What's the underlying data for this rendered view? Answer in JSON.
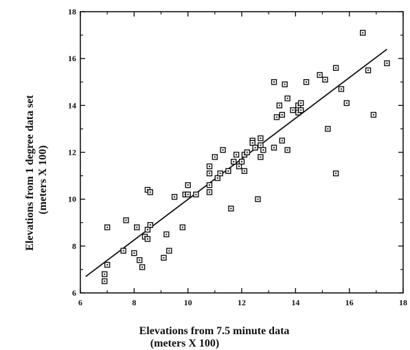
{
  "chart_data": {
    "type": "scatter",
    "title": "",
    "xlabel": [
      "Elevations from 7.5 minute data",
      "(meters X 100)"
    ],
    "ylabel": [
      "Elevations from 1 degree data set",
      "(meters X 100)"
    ],
    "xlim": [
      6,
      18
    ],
    "ylim": [
      6,
      18
    ],
    "xticks": [
      "6",
      "8",
      "10",
      "12",
      "14",
      "16",
      "18"
    ],
    "yticks": [
      "6",
      "8",
      "10",
      "12",
      "14",
      "16",
      "18"
    ],
    "grid": false,
    "legend": "none",
    "marker": "open-square",
    "points": [
      {
        "x": 6.9,
        "y": 6.5
      },
      {
        "x": 6.9,
        "y": 6.8
      },
      {
        "x": 7.0,
        "y": 7.2
      },
      {
        "x": 7.0,
        "y": 8.8
      },
      {
        "x": 7.6,
        "y": 7.8
      },
      {
        "x": 7.7,
        "y": 9.1
      },
      {
        "x": 8.0,
        "y": 7.7
      },
      {
        "x": 8.1,
        "y": 8.8
      },
      {
        "x": 8.2,
        "y": 7.4
      },
      {
        "x": 8.3,
        "y": 7.1
      },
      {
        "x": 8.4,
        "y": 8.4
      },
      {
        "x": 8.5,
        "y": 8.3
      },
      {
        "x": 8.5,
        "y": 8.7
      },
      {
        "x": 8.5,
        "y": 10.4
      },
      {
        "x": 8.6,
        "y": 8.9
      },
      {
        "x": 8.6,
        "y": 10.3
      },
      {
        "x": 9.1,
        "y": 7.5
      },
      {
        "x": 9.2,
        "y": 8.5
      },
      {
        "x": 9.3,
        "y": 7.8
      },
      {
        "x": 9.5,
        "y": 10.1
      },
      {
        "x": 9.8,
        "y": 8.8
      },
      {
        "x": 9.9,
        "y": 10.2
      },
      {
        "x": 10.0,
        "y": 10.6
      },
      {
        "x": 10.0,
        "y": 10.2
      },
      {
        "x": 10.3,
        "y": 10.2
      },
      {
        "x": 10.8,
        "y": 10.3
      },
      {
        "x": 10.8,
        "y": 10.6
      },
      {
        "x": 10.8,
        "y": 11.1
      },
      {
        "x": 10.8,
        "y": 11.4
      },
      {
        "x": 11.0,
        "y": 11.8
      },
      {
        "x": 11.1,
        "y": 10.9
      },
      {
        "x": 11.2,
        "y": 11.1
      },
      {
        "x": 11.3,
        "y": 12.1
      },
      {
        "x": 11.5,
        "y": 11.2
      },
      {
        "x": 11.6,
        "y": 9.6
      },
      {
        "x": 11.7,
        "y": 11.6
      },
      {
        "x": 11.8,
        "y": 11.9
      },
      {
        "x": 11.9,
        "y": 11.4
      },
      {
        "x": 12.0,
        "y": 11.6
      },
      {
        "x": 12.1,
        "y": 11.2
      },
      {
        "x": 12.1,
        "y": 11.9
      },
      {
        "x": 12.2,
        "y": 12.0
      },
      {
        "x": 12.4,
        "y": 12.5
      },
      {
        "x": 12.4,
        "y": 12.4
      },
      {
        "x": 12.5,
        "y": 12.2
      },
      {
        "x": 12.6,
        "y": 10.0
      },
      {
        "x": 12.7,
        "y": 11.8
      },
      {
        "x": 12.7,
        "y": 12.3
      },
      {
        "x": 12.7,
        "y": 12.6
      },
      {
        "x": 12.8,
        "y": 12.1
      },
      {
        "x": 13.2,
        "y": 15.0
      },
      {
        "x": 13.2,
        "y": 12.2
      },
      {
        "x": 13.3,
        "y": 13.5
      },
      {
        "x": 13.4,
        "y": 14.0
      },
      {
        "x": 13.5,
        "y": 13.6
      },
      {
        "x": 13.5,
        "y": 12.5
      },
      {
        "x": 13.6,
        "y": 14.9
      },
      {
        "x": 13.7,
        "y": 14.3
      },
      {
        "x": 13.7,
        "y": 12.1
      },
      {
        "x": 13.9,
        "y": 13.8
      },
      {
        "x": 14.1,
        "y": 14.0
      },
      {
        "x": 14.1,
        "y": 13.7
      },
      {
        "x": 14.2,
        "y": 13.8
      },
      {
        "x": 14.2,
        "y": 14.1
      },
      {
        "x": 14.4,
        "y": 15.0
      },
      {
        "x": 14.9,
        "y": 15.3
      },
      {
        "x": 15.1,
        "y": 15.1
      },
      {
        "x": 15.2,
        "y": 13.0
      },
      {
        "x": 15.5,
        "y": 15.6
      },
      {
        "x": 15.5,
        "y": 11.1
      },
      {
        "x": 15.7,
        "y": 14.7
      },
      {
        "x": 15.9,
        "y": 14.1
      },
      {
        "x": 16.5,
        "y": 17.1
      },
      {
        "x": 16.7,
        "y": 15.5
      },
      {
        "x": 16.9,
        "y": 13.6
      },
      {
        "x": 17.4,
        "y": 15.8
      }
    ],
    "fit_line": [
      {
        "x": 6.2,
        "y": 6.7
      },
      {
        "x": 17.4,
        "y": 16.4
      }
    ]
  }
}
